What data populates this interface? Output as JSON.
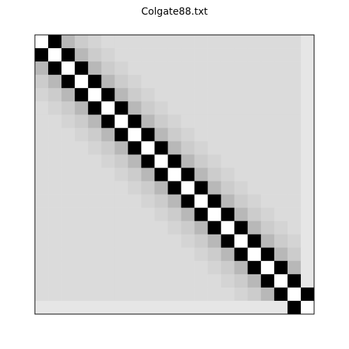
{
  "chart_data": {
    "type": "heatmap",
    "title": "Colgate88.txt",
    "colormap": "gray",
    "vlim": [
      0,
      1
    ],
    "matrix": [
      [
        1,
        0,
        0.72,
        0.8,
        0.83,
        0.86,
        0.86,
        0.86,
        0.86,
        0.86,
        0.86,
        0.86,
        0.86,
        0.86,
        0.86,
        0.86,
        0.86,
        0.86,
        0.86,
        0.86,
        0.9
      ],
      [
        0,
        1,
        0,
        0.72,
        0.8,
        0.83,
        0.86,
        0.86,
        0.86,
        0.86,
        0.86,
        0.86,
        0.86,
        0.86,
        0.86,
        0.86,
        0.86,
        0.86,
        0.86,
        0.86,
        0.9
      ],
      [
        0.72,
        0,
        1,
        0,
        0.72,
        0.8,
        0.83,
        0.86,
        0.86,
        0.86,
        0.86,
        0.86,
        0.86,
        0.86,
        0.86,
        0.86,
        0.86,
        0.86,
        0.86,
        0.86,
        0.9
      ],
      [
        0.8,
        0.72,
        0,
        1,
        0,
        0.72,
        0.8,
        0.83,
        0.86,
        0.86,
        0.86,
        0.86,
        0.86,
        0.86,
        0.86,
        0.86,
        0.86,
        0.86,
        0.86,
        0.86,
        0.9
      ],
      [
        0.83,
        0.8,
        0.72,
        0,
        1,
        0,
        0.72,
        0.8,
        0.83,
        0.86,
        0.86,
        0.86,
        0.86,
        0.86,
        0.86,
        0.86,
        0.86,
        0.86,
        0.86,
        0.86,
        0.9
      ],
      [
        0.86,
        0.83,
        0.8,
        0.72,
        0,
        1,
        0,
        0.72,
        0.8,
        0.83,
        0.86,
        0.86,
        0.86,
        0.86,
        0.86,
        0.86,
        0.86,
        0.86,
        0.86,
        0.86,
        0.9
      ],
      [
        0.86,
        0.86,
        0.83,
        0.8,
        0.72,
        0,
        1,
        0,
        0.72,
        0.8,
        0.83,
        0.86,
        0.86,
        0.86,
        0.86,
        0.86,
        0.86,
        0.86,
        0.86,
        0.86,
        0.9
      ],
      [
        0.86,
        0.86,
        0.86,
        0.83,
        0.8,
        0.72,
        0,
        1,
        0,
        0.72,
        0.8,
        0.83,
        0.86,
        0.86,
        0.86,
        0.86,
        0.86,
        0.86,
        0.86,
        0.86,
        0.9
      ],
      [
        0.86,
        0.86,
        0.86,
        0.86,
        0.83,
        0.8,
        0.72,
        0,
        1,
        0,
        0.72,
        0.8,
        0.83,
        0.86,
        0.86,
        0.86,
        0.86,
        0.86,
        0.86,
        0.86,
        0.9
      ],
      [
        0.86,
        0.86,
        0.86,
        0.86,
        0.86,
        0.83,
        0.8,
        0.72,
        0,
        1,
        0,
        0.72,
        0.8,
        0.83,
        0.86,
        0.86,
        0.86,
        0.86,
        0.86,
        0.86,
        0.9
      ],
      [
        0.86,
        0.86,
        0.86,
        0.86,
        0.86,
        0.86,
        0.83,
        0.8,
        0.72,
        0,
        1,
        0,
        0.72,
        0.8,
        0.83,
        0.86,
        0.86,
        0.86,
        0.86,
        0.86,
        0.9
      ],
      [
        0.86,
        0.86,
        0.86,
        0.86,
        0.86,
        0.86,
        0.86,
        0.83,
        0.8,
        0.72,
        0,
        1,
        0,
        0.72,
        0.8,
        0.83,
        0.86,
        0.86,
        0.86,
        0.86,
        0.9
      ],
      [
        0.86,
        0.86,
        0.86,
        0.86,
        0.86,
        0.86,
        0.86,
        0.86,
        0.83,
        0.8,
        0.72,
        0,
        1,
        0,
        0.72,
        0.8,
        0.83,
        0.86,
        0.86,
        0.86,
        0.9
      ],
      [
        0.86,
        0.86,
        0.86,
        0.86,
        0.86,
        0.86,
        0.86,
        0.86,
        0.86,
        0.83,
        0.8,
        0.72,
        0,
        1,
        0,
        0.72,
        0.8,
        0.83,
        0.86,
        0.86,
        0.9
      ],
      [
        0.86,
        0.86,
        0.86,
        0.86,
        0.86,
        0.86,
        0.86,
        0.86,
        0.86,
        0.86,
        0.83,
        0.8,
        0.72,
        0,
        1,
        0,
        0.72,
        0.8,
        0.83,
        0.86,
        0.9
      ],
      [
        0.86,
        0.86,
        0.86,
        0.86,
        0.86,
        0.86,
        0.86,
        0.86,
        0.86,
        0.86,
        0.86,
        0.83,
        0.8,
        0.72,
        0,
        1,
        0,
        0.72,
        0.8,
        0.83,
        0.9
      ],
      [
        0.86,
        0.86,
        0.86,
        0.86,
        0.86,
        0.86,
        0.86,
        0.86,
        0.86,
        0.86,
        0.86,
        0.86,
        0.83,
        0.8,
        0.72,
        0,
        1,
        0,
        0.72,
        0.8,
        0.9
      ],
      [
        0.86,
        0.86,
        0.86,
        0.86,
        0.86,
        0.86,
        0.86,
        0.86,
        0.86,
        0.86,
        0.86,
        0.86,
        0.86,
        0.83,
        0.8,
        0.72,
        0,
        1,
        0,
        0.72,
        0.9
      ],
      [
        0.86,
        0.86,
        0.86,
        0.86,
        0.86,
        0.86,
        0.86,
        0.86,
        0.86,
        0.86,
        0.86,
        0.86,
        0.86,
        0.86,
        0.83,
        0.8,
        0.72,
        0,
        1,
        0,
        0.9
      ],
      [
        0.86,
        0.86,
        0.86,
        0.86,
        0.86,
        0.86,
        0.86,
        0.86,
        0.86,
        0.86,
        0.86,
        0.86,
        0.86,
        0.86,
        0.86,
        0.83,
        0.8,
        0.72,
        0,
        1,
        0
      ],
      [
        0.9,
        0.9,
        0.9,
        0.9,
        0.9,
        0.9,
        0.9,
        0.9,
        0.9,
        0.9,
        0.9,
        0.9,
        0.9,
        0.9,
        0.9,
        0.9,
        0.9,
        0.9,
        0.9,
        0,
        1
      ]
    ]
  }
}
